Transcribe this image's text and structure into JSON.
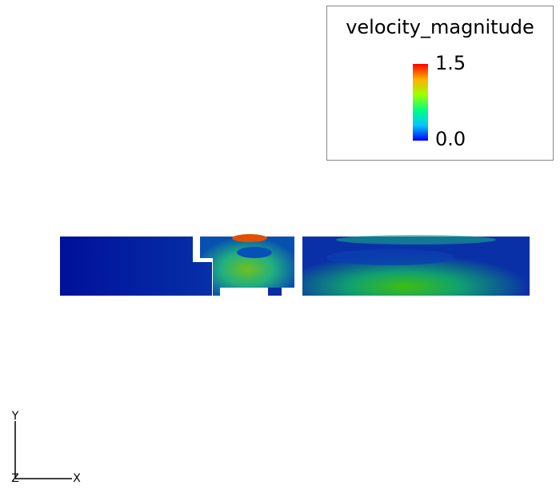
{
  "legend": {
    "title": "velocity_magnitude",
    "max_label": "1.5",
    "min_label": "0.0"
  },
  "axes": {
    "y_label": "Y",
    "z_label": "Z",
    "x_label": "X"
  }
}
